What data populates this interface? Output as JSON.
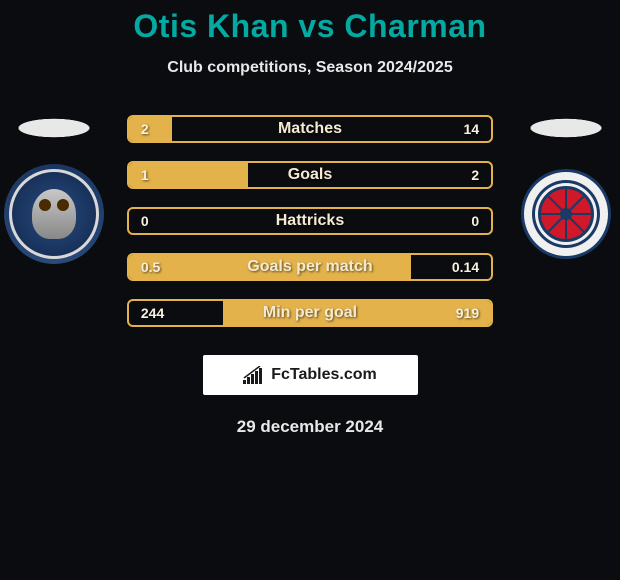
{
  "title": "Otis Khan vs Charman",
  "subtitle": "Club competitions, Season 2024/2025",
  "colors": {
    "accent": "#04a9a2",
    "bar_border": "#e3b24a",
    "bar_fill": "#e3b24a",
    "background": "#0a0c10",
    "text": "#e8e8e8"
  },
  "left_crest_label": "Oldham Athletic",
  "right_crest_label": "Hartlepool United",
  "bars": [
    {
      "label": "Matches",
      "left": "2",
      "right": "14",
      "left_pct": 12,
      "right_pct": 0
    },
    {
      "label": "Goals",
      "left": "1",
      "right": "2",
      "left_pct": 33,
      "right_pct": 0
    },
    {
      "label": "Hattricks",
      "left": "0",
      "right": "0",
      "left_pct": 0,
      "right_pct": 0
    },
    {
      "label": "Goals per match",
      "left": "0.5",
      "right": "0.14",
      "left_pct": 78,
      "right_pct": 0
    },
    {
      "label": "Min per goal",
      "left": "244",
      "right": "919",
      "left_pct": 0,
      "right_pct": 74
    }
  ],
  "logo_text": "FcTables.com",
  "date": "29 december 2024"
}
